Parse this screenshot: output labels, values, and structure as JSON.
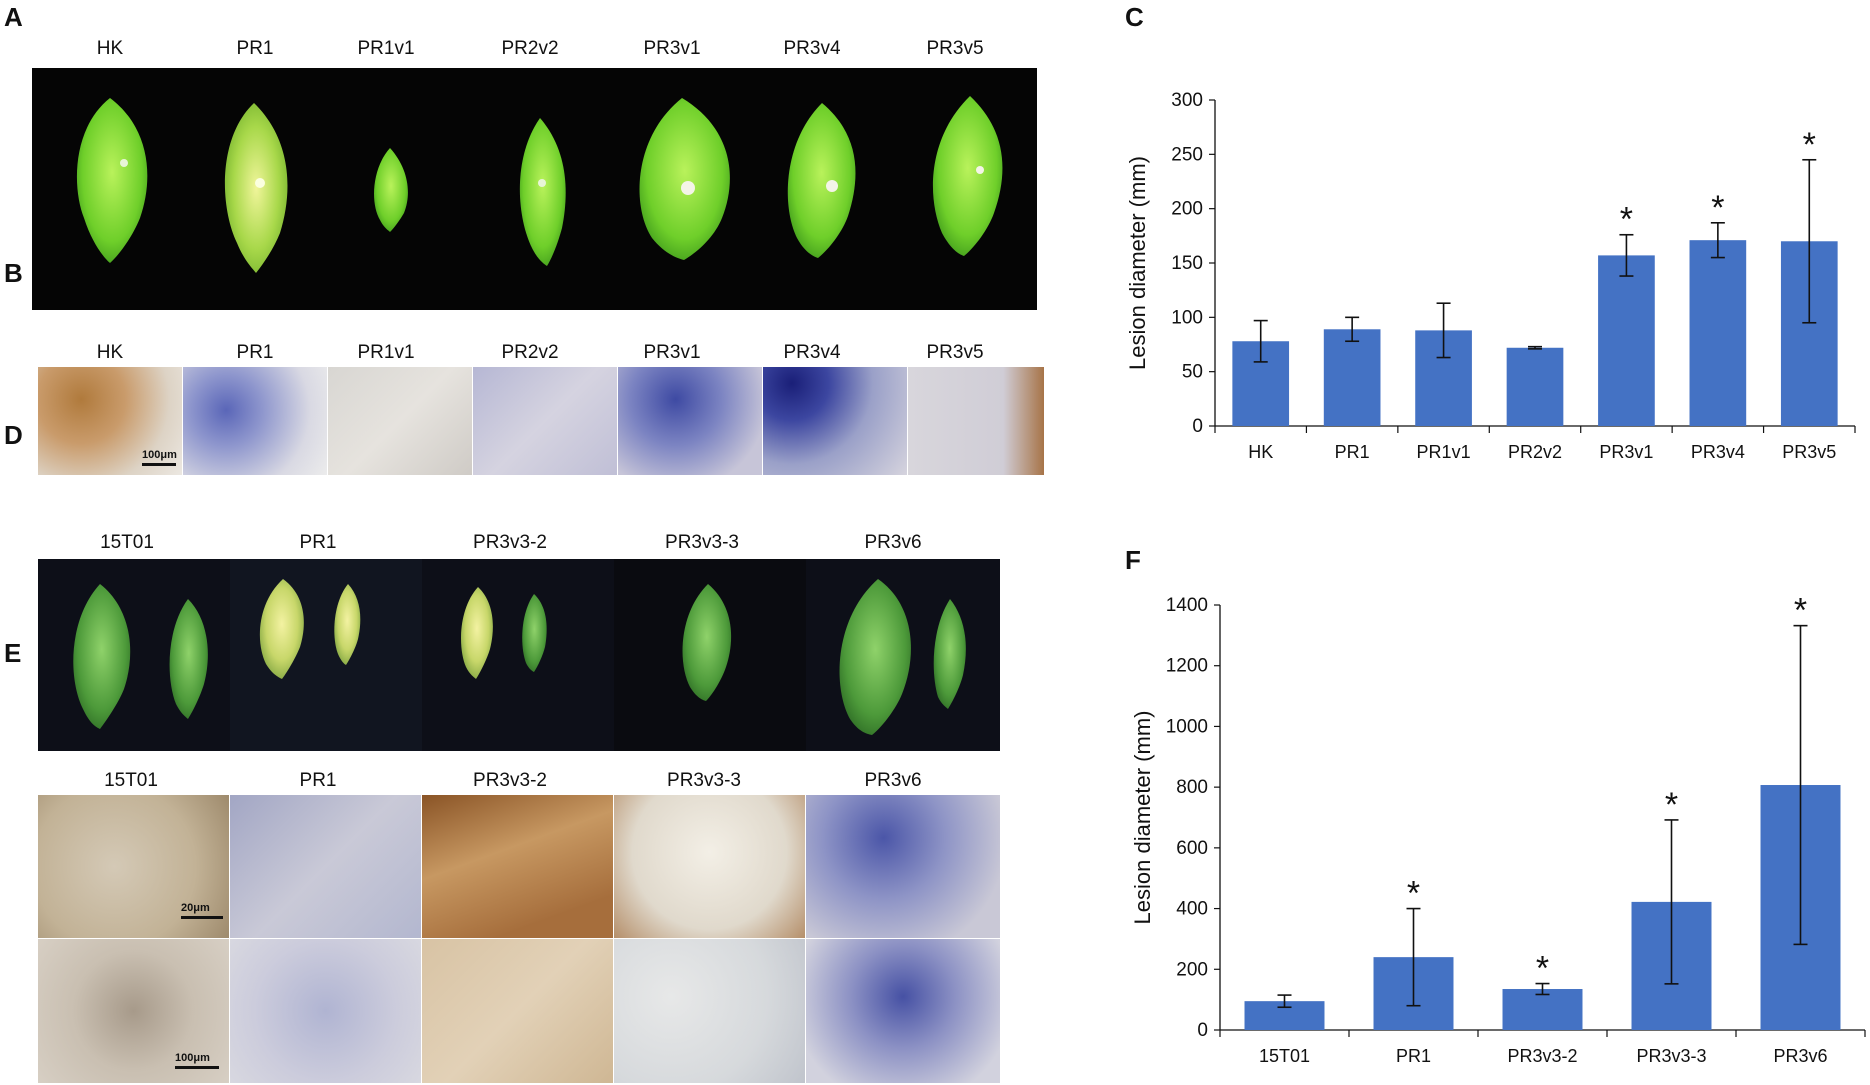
{
  "panels": {
    "A": {
      "letter": "A",
      "labels": [
        "HK",
        "PR1",
        "PR1v1",
        "PR2v2",
        "PR3v1",
        "PR3v4",
        "PR3v5"
      ]
    },
    "B": {
      "letter": "B",
      "labels": [
        "HK",
        "PR1",
        "PR1v1",
        "PR2v2",
        "PR3v1",
        "PR3v4",
        "PR3v5"
      ],
      "scale": "100μm"
    },
    "C": {
      "letter": "C"
    },
    "D": {
      "letter": "D",
      "labels": [
        "15T01",
        "PR1",
        "PR3v3-2",
        "PR3v3-3",
        "PR3v6"
      ]
    },
    "E": {
      "letter": "E",
      "labels": [
        "15T01",
        "PR1",
        "PR3v3-2",
        "PR3v3-3",
        "PR3v6"
      ],
      "scale_top": "20μm",
      "scale_bottom": "100μm"
    },
    "F": {
      "letter": "F"
    }
  },
  "colors": {
    "bar": "#4472C4",
    "axis": "#111111"
  },
  "chart_data": [
    {
      "type": "bar",
      "panel": "C",
      "categories": [
        "HK",
        "PR1",
        "PR1v1",
        "PR2v2",
        "PR3v1",
        "PR3v4",
        "PR3v5"
      ],
      "values": [
        78,
        89,
        88,
        72,
        157,
        171,
        170
      ],
      "errors": [
        19,
        11,
        25,
        1,
        19,
        16,
        75
      ],
      "significant": [
        false,
        false,
        false,
        false,
        true,
        true,
        true
      ],
      "significance_mark": "*",
      "ylabel": "Lesion diameter (mm)",
      "ylim": [
        0,
        300
      ],
      "yticks": [
        0,
        50,
        100,
        150,
        200,
        250,
        300
      ],
      "grid": false
    },
    {
      "type": "bar",
      "panel": "F",
      "categories": [
        "15T01",
        "PR1",
        "PR3v3-2",
        "PR3v3-3",
        "PR3v6"
      ],
      "values": [
        95,
        240,
        135,
        422,
        807
      ],
      "errors": [
        20,
        160,
        18,
        270,
        525
      ],
      "significant": [
        false,
        true,
        true,
        true,
        true
      ],
      "significance_mark": "*",
      "ylabel": "Lesion diameter (mm)",
      "ylim": [
        0,
        1400
      ],
      "yticks": [
        0,
        200,
        400,
        600,
        800,
        1000,
        1200,
        1400
      ],
      "grid": false
    }
  ]
}
